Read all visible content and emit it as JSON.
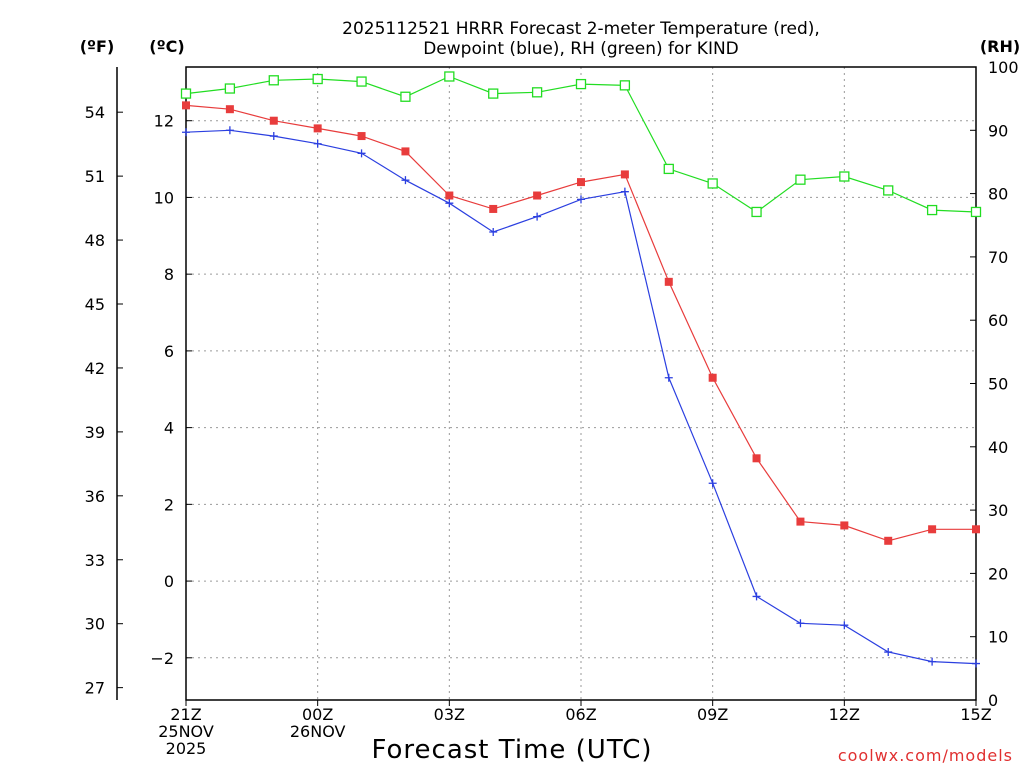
{
  "chart_data": {
    "type": "line",
    "title_line1": "2025112521 HRRR Forecast 2-meter Temperature (red),",
    "title_line2": "Dewpoint (blue), RH (green) for KIND",
    "xlabel": "Forecast Time (UTC)",
    "credit": "coolwx.com/models",
    "units": {
      "left_outer": "(ºF)",
      "left_inner": "(ºC)",
      "right": "(RH)"
    },
    "x_tick_labels": [
      {
        "hour": 0,
        "label": "21Z",
        "sub1": "25NOV",
        "sub2": "2025"
      },
      {
        "hour": 3,
        "label": "00Z",
        "sub1": "26NOV",
        "sub2": ""
      },
      {
        "hour": 6,
        "label": "03Z",
        "sub1": "",
        "sub2": ""
      },
      {
        "hour": 9,
        "label": "06Z",
        "sub1": "",
        "sub2": ""
      },
      {
        "hour": 12,
        "label": "09Z",
        "sub1": "",
        "sub2": ""
      },
      {
        "hour": 15,
        "label": "12Z",
        "sub1": "",
        "sub2": ""
      },
      {
        "hour": 18,
        "label": "15Z",
        "sub1": "",
        "sub2": ""
      }
    ],
    "xlim": [
      0,
      18
    ],
    "ylim_c": [
      -3.1,
      13.4
    ],
    "ylim_rh": [
      0,
      100
    ],
    "celsius_ticks": [
      "-2",
      "0",
      "2",
      "4",
      "6",
      "8",
      "10",
      "12"
    ],
    "fahrenheit_ticks": [
      "27",
      "30",
      "33",
      "36",
      "39",
      "42",
      "45",
      "48",
      "51",
      "54"
    ],
    "rh_ticks": [
      "0",
      "10",
      "20",
      "30",
      "40",
      "50",
      "60",
      "70",
      "80",
      "90",
      "100"
    ],
    "x_hours": [
      0,
      1,
      2,
      3,
      4,
      5,
      6,
      7,
      8,
      9,
      10,
      11,
      12,
      13,
      14,
      15,
      16,
      17,
      18
    ],
    "series": [
      {
        "name": "2-meter Temperature",
        "color": "#e83c3c",
        "marker": "filled-square",
        "unit": "C",
        "values": [
          12.4,
          12.3,
          12.0,
          11.8,
          11.6,
          11.2,
          10.05,
          9.7,
          10.05,
          10.4,
          10.6,
          7.8,
          5.3,
          3.2,
          1.55,
          1.45,
          1.05,
          1.35,
          1.35
        ]
      },
      {
        "name": "Dewpoint",
        "color": "#2b3fe0",
        "marker": "plus",
        "unit": "C",
        "values": [
          11.7,
          11.75,
          11.6,
          11.4,
          11.15,
          10.45,
          9.85,
          9.1,
          9.5,
          9.95,
          10.15,
          5.3,
          2.55,
          -0.4,
          -1.1,
          -1.15,
          -1.85,
          -2.1,
          -2.15
        ]
      },
      {
        "name": "Relative Humidity",
        "color": "#22dd22",
        "marker": "open-square",
        "unit": "%",
        "values": [
          95.8,
          96.6,
          97.9,
          98.1,
          97.7,
          95.3,
          98.5,
          95.8,
          96.0,
          97.3,
          97.1,
          83.9,
          81.6,
          77.1,
          82.2,
          82.7,
          80.5,
          77.4,
          77.1
        ]
      }
    ]
  }
}
